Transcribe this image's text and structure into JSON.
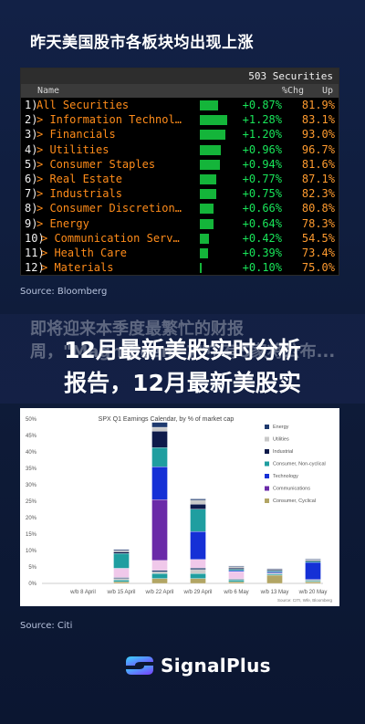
{
  "header": {
    "title": "昨天美国股市各板块均出现上涨"
  },
  "terminal": {
    "securities_label": "503 Securities",
    "col_name": "Name",
    "col_chg": "%Chg",
    "col_up": "Up",
    "rows": [
      {
        "num": "1)",
        "name": "All Securities",
        "chg": "+0.87%",
        "chg_value": 0.87,
        "up": "81.9%"
      },
      {
        "num": "2)",
        "name": "> Information Technol…",
        "chg": "+1.28%",
        "chg_value": 1.28,
        "up": "83.1%"
      },
      {
        "num": "3)",
        "name": "> Financials",
        "chg": "+1.20%",
        "chg_value": 1.2,
        "up": "93.0%"
      },
      {
        "num": "4)",
        "name": "> Utilities",
        "chg": "+0.96%",
        "chg_value": 0.96,
        "up": "96.7%"
      },
      {
        "num": "5)",
        "name": "> Consumer Staples",
        "chg": "+0.94%",
        "chg_value": 0.94,
        "up": "81.6%"
      },
      {
        "num": "6)",
        "name": "> Real Estate",
        "chg": "+0.77%",
        "chg_value": 0.77,
        "up": "87.1%"
      },
      {
        "num": "7)",
        "name": "> Industrials",
        "chg": "+0.75%",
        "chg_value": 0.75,
        "up": "82.3%"
      },
      {
        "num": "8)",
        "name": "> Consumer Discretion…",
        "chg": "+0.66%",
        "chg_value": 0.66,
        "up": "80.8%"
      },
      {
        "num": "9)",
        "name": "> Energy",
        "chg": "+0.64%",
        "chg_value": 0.64,
        "up": "78.3%"
      },
      {
        "num": "10)",
        "name": "> Communication Serv…",
        "chg": "+0.42%",
        "chg_value": 0.42,
        "up": "54.5%"
      },
      {
        "num": "11)",
        "name": "> Health Care",
        "chg": "+0.39%",
        "chg_value": 0.39,
        "up": "73.4%"
      },
      {
        "num": "12)",
        "name": "> Materials",
        "chg": "+0.10%",
        "chg_value": 0.1,
        "up": "75.0%"
      }
    ]
  },
  "source_1": "Source: Bloomberg",
  "banner": {
    "faded_text": "即将迎来本季度最繁忙的财报周，\"Magnificent 7\"中有5家将公布...",
    "main_line1": "12月最新美股实时分析",
    "main_line2": "报告，12月最新美股实"
  },
  "source_2": "Source: Citi",
  "logo": {
    "text": "SignalPlus"
  },
  "colors": {
    "bg": "#0f1d3a",
    "terminal_orange": "#ff8c1a",
    "terminal_green": "#19e65a",
    "energy": "#1f3a6e",
    "utilities": "#c9c9c9",
    "industrial": "#0e1a4a",
    "consumer_non_cyclical": "#1f9ea0",
    "technology": "#1530d6",
    "communications": "#6a2aa8",
    "consumer_cyclical": "#b2a564"
  },
  "chart_data": {
    "type": "bar",
    "title": "SPX Q1 Earnings Calendar, by % of market cap",
    "ylim": [
      0,
      50
    ],
    "yticks": [
      "0%",
      "5%",
      "10%",
      "15%",
      "20%",
      "25%",
      "30%",
      "35%",
      "40%",
      "45%",
      "50%"
    ],
    "categories": [
      "w/b 8 April",
      "w/b 15 April",
      "w/b 22 April",
      "w/b 29 April",
      "w/b 6 May",
      "w/b 13 May",
      "w/b 20 May"
    ],
    "series": [
      {
        "name": "Consumer, Cyclical",
        "color": "#b2a564",
        "values": [
          0,
          0.5,
          1.5,
          1.5,
          0.5,
          2.5,
          0.5
        ]
      },
      {
        "name": "Consumer, Non-cyclical",
        "color": "#1f9ea0",
        "values": [
          0,
          0.5,
          1.5,
          1.5,
          0.5,
          0.3,
          0.3
        ]
      },
      {
        "name": "Utilities",
        "color": "#c9c9c9",
        "values": [
          0,
          0.5,
          0.5,
          1.2,
          0.2,
          0.2,
          0.2
        ]
      },
      {
        "name": "Energy",
        "color": "#1f3a6e",
        "values": [
          0,
          0.3,
          0.5,
          0.5,
          0.2,
          0.2,
          0.2
        ]
      },
      {
        "name": "Consumer, Cyclical (pink)",
        "color": "#f0c8ea",
        "values": [
          0,
          2.8,
          3.0,
          2.6,
          2.2,
          0,
          0
        ]
      },
      {
        "name": "Communications",
        "color": "#6a2aa8",
        "values": [
          0,
          0,
          18.5,
          0,
          0,
          0,
          0
        ]
      },
      {
        "name": "Technology",
        "color": "#1530d6",
        "values": [
          0,
          0,
          10.0,
          8.5,
          0.3,
          0.3,
          5.2
        ]
      },
      {
        "name": "Consumer, Non-cyclical",
        "color": "#1f9ea0",
        "values": [
          0,
          4.5,
          5.8,
          6.8,
          0.4,
          0.3,
          0.3
        ]
      },
      {
        "name": "Industrial",
        "color": "#0e1a4a",
        "values": [
          0,
          0.5,
          5.0,
          1.5,
          0.4,
          0.3,
          0.3
        ]
      },
      {
        "name": "Utilities",
        "color": "#c9c9c9",
        "values": [
          0,
          0.4,
          1.2,
          1.2,
          0.4,
          0.2,
          0.2
        ]
      },
      {
        "name": "Energy",
        "color": "#1f3a6e",
        "values": [
          0,
          0.3,
          1.5,
          0.4,
          0.2,
          0.2,
          0.2
        ]
      }
    ],
    "legend": [
      "Energy",
      "Utilities",
      "Industrial",
      "Consumer, Non-cyclical",
      "Technology",
      "Communications",
      "Consumer, Cyclical"
    ],
    "legend_colors": [
      "#1f3a6e",
      "#c9c9c9",
      "#0e1a4a",
      "#1f9ea0",
      "#1530d6",
      "#6a2aa8",
      "#b2a564"
    ],
    "legend_placement": "right",
    "footer": "Source: CITI, Wfe, Bloomberg",
    "grid": false
  }
}
